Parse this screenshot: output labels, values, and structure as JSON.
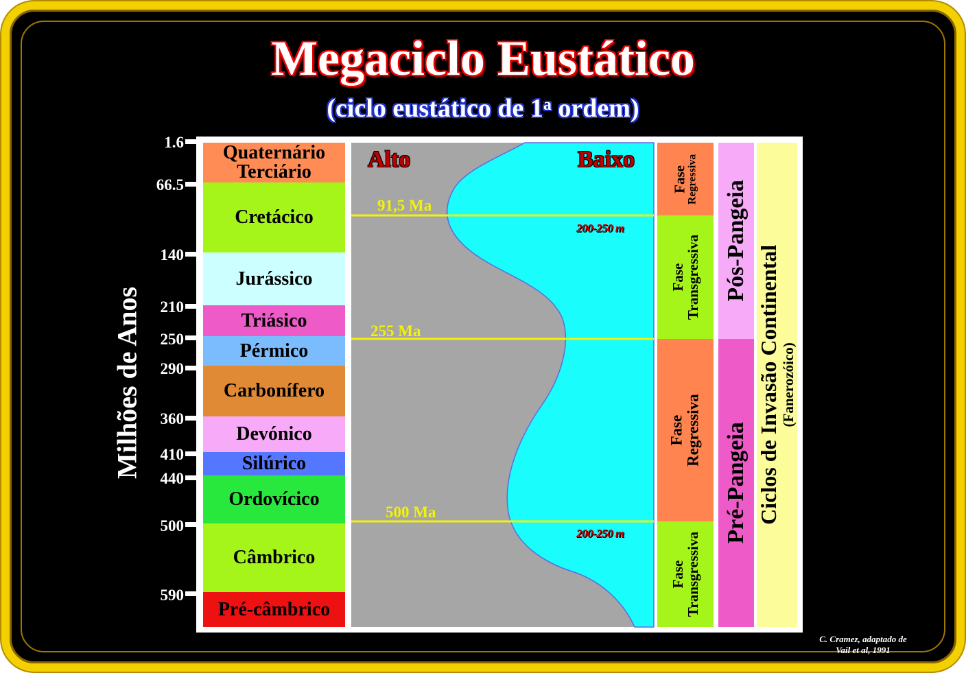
{
  "title": "Megaciclo Eustático",
  "subtitle": {
    "main": "(ciclo eustático de 1",
    "sup": "a",
    "end": " ordem)"
  },
  "y_axis_label": "Milhões de Anos",
  "ticks": [
    "1.6",
    "66.5",
    "140",
    "210",
    "250",
    "290",
    "360",
    "410",
    "440",
    "500",
    "590"
  ],
  "periods": [
    "Cretácico",
    "Jurássico",
    "Triásico",
    "Pérmico",
    "Carbonífero",
    "Devónico",
    "Silúrico",
    "Ordovícico",
    "Câmbrico",
    "Pré-câmbrico"
  ],
  "quaternary": {
    "line1": "Quaternário",
    "line2": "Terciário"
  },
  "curve": {
    "alto": "Alto",
    "baixo": "Baixo",
    "depth_top": "200-250 m",
    "depth_bottom": "200-250 m"
  },
  "age_lines": [
    "91,5 Ma",
    "255 Ma",
    "500 Ma"
  ],
  "phases": [
    {
      "line1": "Fase",
      "line2": "Regressiva"
    },
    {
      "line1": "Fase",
      "line2": "Transgressiva"
    },
    {
      "line1": "Fase",
      "line2": "Regressiva"
    },
    {
      "line1": "Fase",
      "line2": "Transgressiva"
    }
  ],
  "pangea": {
    "post": "Pós-Pangeia",
    "pre": "Pré-Pangeia"
  },
  "cycles": {
    "main": "Ciclos de Invasão Continental",
    "sub": "(Fanerozóico)"
  },
  "credit": {
    "line1": "C. Cramez, adaptado de",
    "line2": "Vail et al, 1991"
  },
  "colors": {
    "quaternary": "#ff8c55",
    "cretaceous": "#a6f51a",
    "jurassic": "#ccffff",
    "triassic": "#ee5bc8",
    "permian": "#7bbcff",
    "carboniferous": "#e08a35",
    "devonian": "#f7aaf7",
    "silurian": "#5577ff",
    "ordovician": "#28e83e",
    "cambrian": "#a6f51a",
    "precambrian": "#ee1111",
    "land": "#a6a6a6",
    "sea": "#19fdfd",
    "age_line": "#f2f20a",
    "regressive": "#ff8450",
    "transgressive": "#a6f51a",
    "post_pangea": "#f7aaf7",
    "pre_pangea": "#ee5bc8",
    "cycles": "#fcfc9a"
  }
}
